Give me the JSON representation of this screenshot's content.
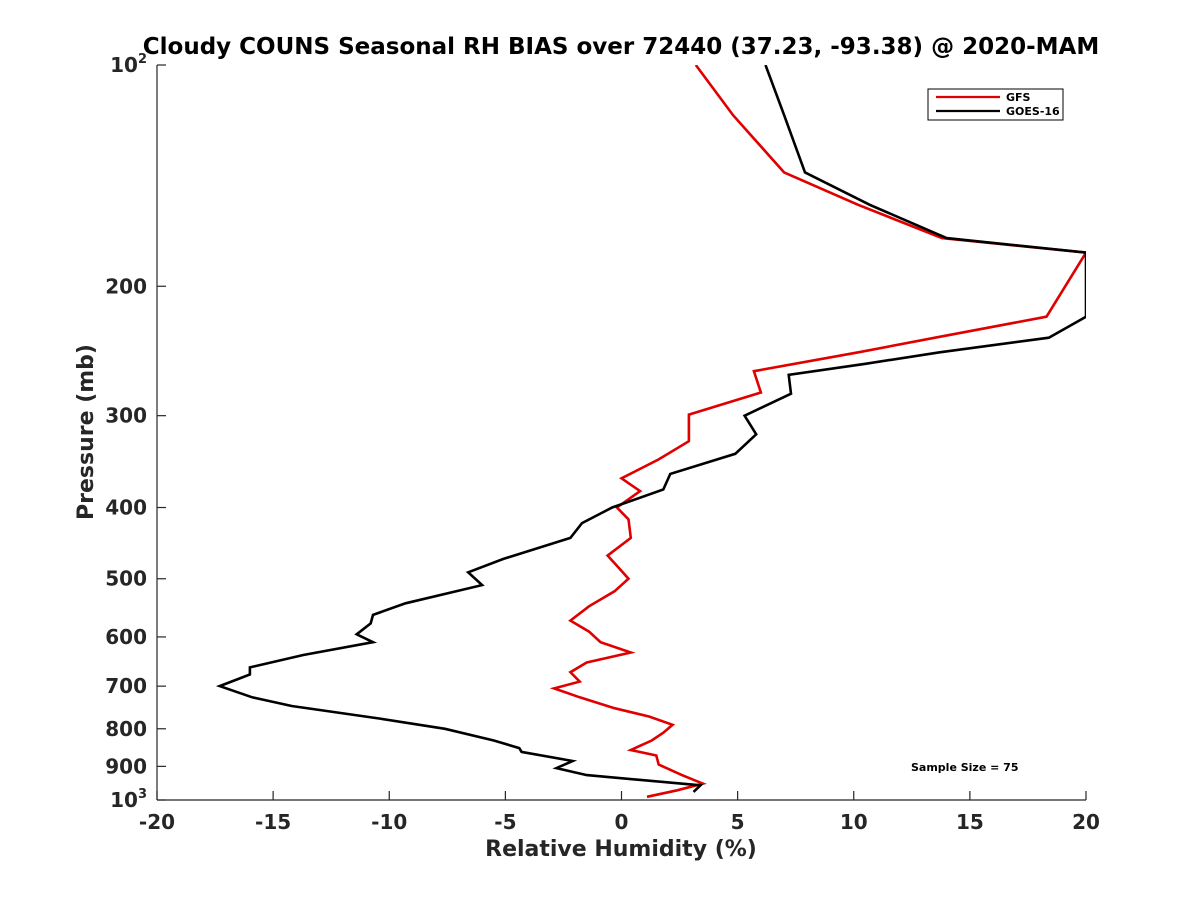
{
  "chart_data": {
    "type": "line",
    "title": "Cloudy COUNS Seasonal RH BIAS over 72440 (37.23, -93.38) @ 2020-MAM",
    "xlabel": "Relative Humidity (%)",
    "ylabel": "Pressure (mb)",
    "xlim": [
      -20,
      20
    ],
    "ylim": [
      100,
      1000
    ],
    "yscale": "log",
    "y_reversed": true,
    "x_ticks": [
      "-20",
      "-15",
      "-10",
      "-5",
      "0",
      "5",
      "10",
      "15",
      "20"
    ],
    "y_ticks": [
      {
        "value": 100,
        "base": "10",
        "exp": "2"
      },
      {
        "value": 200,
        "label": "200"
      },
      {
        "value": 300,
        "label": "300"
      },
      {
        "value": 400,
        "label": "400"
      },
      {
        "value": 500,
        "label": "500"
      },
      {
        "value": 600,
        "label": "600"
      },
      {
        "value": 700,
        "label": "700"
      },
      {
        "value": 800,
        "label": "800"
      },
      {
        "value": 900,
        "label": "900"
      },
      {
        "value": 1000,
        "base": "10",
        "exp": "3"
      }
    ],
    "legend_position": "top-right",
    "annotation": "Sample Size = 75",
    "series": [
      {
        "name": "GFS",
        "color": "#e00000",
        "points": [
          [
            3.2,
            100
          ],
          [
            4.8,
            117
          ],
          [
            7.0,
            140
          ],
          [
            10.2,
            155
          ],
          [
            13.8,
            172
          ],
          [
            20.0,
            180
          ],
          [
            18.3,
            220
          ],
          [
            13.5,
            235
          ],
          [
            10.2,
            246
          ],
          [
            5.7,
            261
          ],
          [
            6.0,
            279
          ],
          [
            2.9,
            299
          ],
          [
            2.9,
            325
          ],
          [
            1.6,
            344
          ],
          [
            0.0,
            365
          ],
          [
            0.8,
            380
          ],
          [
            -0.2,
            400
          ],
          [
            0.3,
            415
          ],
          [
            0.4,
            440
          ],
          [
            -0.6,
            465
          ],
          [
            -0.2,
            480
          ],
          [
            0.3,
            500
          ],
          [
            -0.3,
            520
          ],
          [
            -1.4,
            545
          ],
          [
            -2.2,
            570
          ],
          [
            -1.4,
            590
          ],
          [
            -0.9,
            610
          ],
          [
            0.4,
            630
          ],
          [
            -1.5,
            650
          ],
          [
            -2.2,
            670
          ],
          [
            -1.8,
            690
          ],
          [
            -2.9,
            705
          ],
          [
            -1.8,
            725
          ],
          [
            -0.3,
            750
          ],
          [
            1.2,
            770
          ],
          [
            2.2,
            790
          ],
          [
            1.8,
            810
          ],
          [
            1.3,
            830
          ],
          [
            0.4,
            855
          ],
          [
            1.5,
            870
          ],
          [
            1.6,
            895
          ],
          [
            2.6,
            925
          ],
          [
            3.5,
            950
          ],
          [
            2.4,
            970
          ],
          [
            1.1,
            990
          ]
        ]
      },
      {
        "name": "GOES-16",
        "color": "#000000",
        "points": [
          [
            6.2,
            100
          ],
          [
            7.0,
            117
          ],
          [
            7.9,
            140
          ],
          [
            10.7,
            155
          ],
          [
            14.0,
            172
          ],
          [
            20.0,
            180
          ],
          [
            20.0,
            220
          ],
          [
            18.4,
            235
          ],
          [
            13.7,
            246
          ],
          [
            10.5,
            255
          ],
          [
            7.2,
            264
          ],
          [
            7.3,
            280
          ],
          [
            5.3,
            300
          ],
          [
            5.8,
            318
          ],
          [
            4.9,
            338
          ],
          [
            2.1,
            360
          ],
          [
            1.8,
            378
          ],
          [
            -0.4,
            400
          ],
          [
            -1.7,
            420
          ],
          [
            -2.2,
            440
          ],
          [
            -5.1,
            470
          ],
          [
            -6.6,
            490
          ],
          [
            -6.0,
            510
          ],
          [
            -9.3,
            540
          ],
          [
            -10.7,
            560
          ],
          [
            -10.8,
            575
          ],
          [
            -11.4,
            595
          ],
          [
            -10.7,
            610
          ],
          [
            -13.7,
            635
          ],
          [
            -16.0,
            660
          ],
          [
            -16.0,
            675
          ],
          [
            -17.3,
            700
          ],
          [
            -15.9,
            725
          ],
          [
            -14.2,
            745
          ],
          [
            -10.4,
            775
          ],
          [
            -7.6,
            800
          ],
          [
            -5.5,
            830
          ],
          [
            -4.4,
            850
          ],
          [
            -4.3,
            860
          ],
          [
            -2.1,
            885
          ],
          [
            -2.8,
            905
          ],
          [
            -1.5,
            925
          ],
          [
            3.4,
            955
          ],
          [
            3.1,
            975
          ]
        ]
      }
    ]
  }
}
